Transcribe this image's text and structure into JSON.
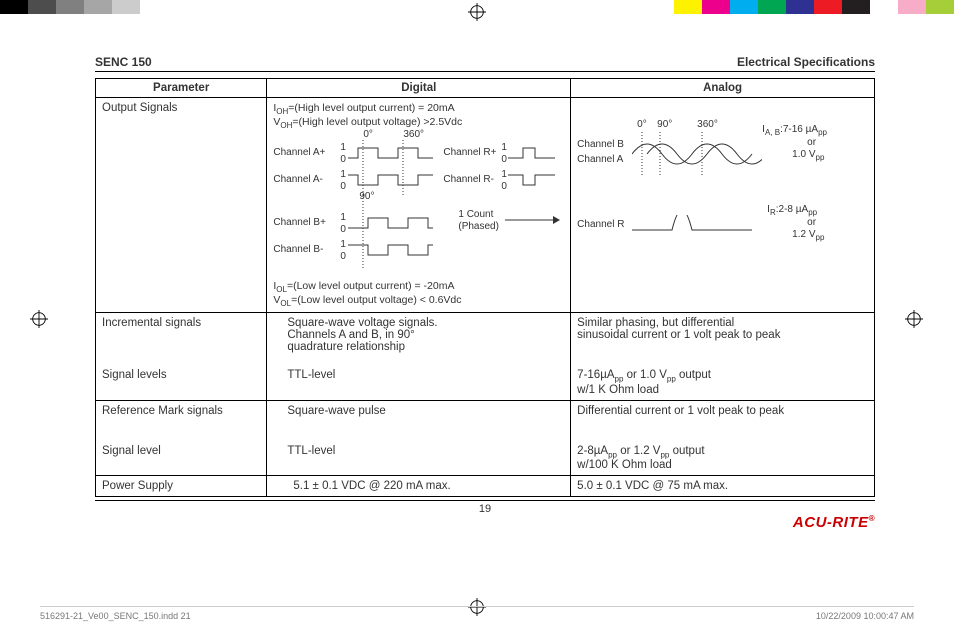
{
  "colorbar": {
    "left": [
      "#000000",
      "#4d4d4d",
      "#808080",
      "#a6a6a6",
      "#cccccc",
      "#ffffff",
      "#ffffff",
      "#ffffff",
      "#ffffff",
      "#ffffff",
      "#ffffff"
    ],
    "right": [
      "#ffffff",
      "#fff200",
      "#ec008c",
      "#00aeef",
      "#00a651",
      "#2e3192",
      "#ed1c24",
      "#231f20",
      "#ffffff",
      "#f7adc8",
      "#a6ce39"
    ]
  },
  "header": {
    "left": "SENC 150",
    "right": "Electrical Specifications"
  },
  "th": {
    "param": "Parameter",
    "digital": "Digital",
    "analog": "Analog"
  },
  "row_output": {
    "param": "Output Signals",
    "d_top1": "I",
    "d_top1_sub": "OH",
    "d_top1_rest": "=(High level output current) = 20mA",
    "d_top2": "V",
    "d_top2_sub": "OH",
    "d_top2_rest": "=(High level output voltage) >2.5Vdc",
    "d_0": "0°",
    "d_360": "360°",
    "d_90": "90°",
    "d_ch_ap": "Channel A+",
    "d_ch_am": "Channel A-",
    "d_ch_bp": "Channel B+",
    "d_ch_bm": "Channel B-",
    "d_ch_rp": "Channel R+",
    "d_ch_rm": "Channel R-",
    "d_count": "1 Count",
    "d_phased": "(Phased)",
    "d_bot1": "I",
    "d_bot1_sub": "OL",
    "d_bot1_rest": "=(Low level output current) = -20mA",
    "d_bot2": "V",
    "d_bot2_sub": "OL",
    "d_bot2_rest": "=(Low level output voltage) < 0.6Vdc",
    "a_0": "0°",
    "a_90": "90°",
    "a_360": "360°",
    "a_ch_b": "Channel B",
    "a_ch_a": "Channel A",
    "a_ch_r": "Channel R",
    "a_iab": "I",
    "a_iab_sub": "A, B",
    "a_iab_rest": ":7-16 µA",
    "a_iab_pp": "pp",
    "a_or": "or",
    "a_1v": "1.0 V",
    "a_pp": "pp",
    "a_ir": "I",
    "a_ir_sub": "R",
    "a_ir_rest": ":2-8 µA",
    "a_ir_pp": "pp",
    "a_12v": "1.2 V"
  },
  "row_inc": {
    "param": "Incremental signals",
    "d": "Square-wave voltage signals.\nChannels A and B, in 90°\nquadrature relationship",
    "a": "Similar phasing, but differential\nsinusoidal current or 1 volt peak to peak"
  },
  "row_siglevels": {
    "param": "Signal levels",
    "d": "TTL-level",
    "a_l1": "7-16µA",
    "a_l1_pp": "pp",
    "a_l1_mid": " or 1.0 V",
    "a_l1_pp2": "pp",
    "a_l1_rest": " output",
    "a_l2": "w/1 K Ohm load"
  },
  "row_ref": {
    "param": "Reference Mark signals",
    "d": "Square-wave pulse",
    "a": "Differential current  or 1 volt peak to peak"
  },
  "row_siglevel": {
    "param": "Signal level",
    "d": "TTL-level",
    "a_l1": "2-8µA",
    "a_l1_pp": "pp",
    "a_l1_mid": " or 1.2 V",
    "a_l1_pp2": "pp",
    "a_l1_rest": " output",
    "a_l2": "w/100 K Ohm load"
  },
  "row_power": {
    "param": "Power Supply",
    "d": "5.1 ± 0.1 VDC @ 220 mA max.",
    "a": "5.0 ± 0.1 VDC @ 75 mA max."
  },
  "pageNum": "19",
  "brand": "ACU-RITE",
  "footer": {
    "left": "516291-21_Ve00_SENC_150.indd   21",
    "right": "10/22/2009   10:00:47 AM"
  },
  "svg": {
    "square_colors": {
      "stroke": "#333333",
      "strokeWidth": 1
    },
    "sine_colors": {
      "stroke": "#333333",
      "strokeWidth": 1
    }
  }
}
